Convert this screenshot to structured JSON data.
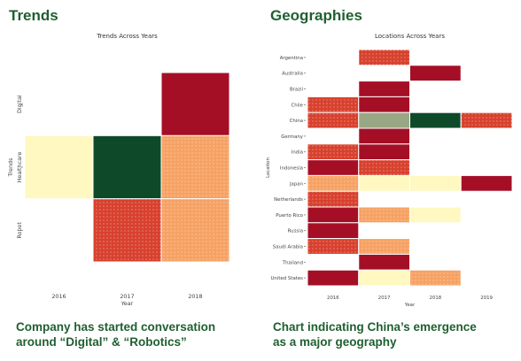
{
  "panels": {
    "trends": {
      "heading": "Trends",
      "caption_line1": "Company has started conversation",
      "caption_line2": "around “Digital” & “Robotics”"
    },
    "geographies": {
      "heading": "Geographies",
      "caption_line1": "Chart indicating China’s emergence",
      "caption_line2": "as a major geography"
    }
  },
  "colors": {
    "lowest": "#fff8c0",
    "low": "#f6a264",
    "medium": "#d8412e",
    "high": "#a50f26",
    "neutral": "#98a885",
    "highest": "#0e4a2a"
  },
  "chart_data": [
    {
      "type": "heatmap",
      "title": "Trends Across Years",
      "xlabel": "Year",
      "ylabel": "Trends",
      "x_categories": [
        "2016",
        "2017",
        "2018"
      ],
      "y_categories": [
        "Digital",
        "Healthcare",
        "Robot"
      ],
      "cells": [
        {
          "row": "Digital",
          "col": "2018",
          "level": "high"
        },
        {
          "row": "Healthcare",
          "col": "2016",
          "level": "lowest"
        },
        {
          "row": "Healthcare",
          "col": "2017",
          "level": "highest"
        },
        {
          "row": "Healthcare",
          "col": "2018",
          "level": "low"
        },
        {
          "row": "Robot",
          "col": "2017",
          "level": "medium"
        },
        {
          "row": "Robot",
          "col": "2018",
          "level": "low"
        }
      ],
      "grid": false,
      "legend": "none"
    },
    {
      "type": "heatmap",
      "title": "Locations Across Years",
      "xlabel": "Year",
      "ylabel": "Location",
      "x_categories": [
        "2016",
        "2017",
        "2018",
        "2019"
      ],
      "y_categories": [
        "Argentina",
        "Australia",
        "Brazil",
        "Chile",
        "China",
        "Germany",
        "India",
        "Indonesia",
        "Japan",
        "Netherlands",
        "Puerto Rico",
        "Russia",
        "Saudi Arabia",
        "Thailand",
        "United States"
      ],
      "cells": [
        {
          "row": "Argentina",
          "col": "2017",
          "level": "medium"
        },
        {
          "row": "Australia",
          "col": "2018",
          "level": "high"
        },
        {
          "row": "Brazil",
          "col": "2017",
          "level": "high"
        },
        {
          "row": "Chile",
          "col": "2016",
          "level": "medium"
        },
        {
          "row": "Chile",
          "col": "2017",
          "level": "high"
        },
        {
          "row": "China",
          "col": "2016",
          "level": "medium"
        },
        {
          "row": "China",
          "col": "2017",
          "level": "neutral"
        },
        {
          "row": "China",
          "col": "2018",
          "level": "highest"
        },
        {
          "row": "China",
          "col": "2019",
          "level": "medium"
        },
        {
          "row": "Germany",
          "col": "2017",
          "level": "high"
        },
        {
          "row": "India",
          "col": "2016",
          "level": "medium"
        },
        {
          "row": "India",
          "col": "2017",
          "level": "high"
        },
        {
          "row": "Indonesia",
          "col": "2016",
          "level": "high"
        },
        {
          "row": "Indonesia",
          "col": "2017",
          "level": "medium"
        },
        {
          "row": "Japan",
          "col": "2016",
          "level": "low"
        },
        {
          "row": "Japan",
          "col": "2017",
          "level": "lowest"
        },
        {
          "row": "Japan",
          "col": "2018",
          "level": "lowest"
        },
        {
          "row": "Japan",
          "col": "2019",
          "level": "high"
        },
        {
          "row": "Netherlands",
          "col": "2016",
          "level": "medium"
        },
        {
          "row": "Puerto Rico",
          "col": "2016",
          "level": "high"
        },
        {
          "row": "Puerto Rico",
          "col": "2017",
          "level": "low"
        },
        {
          "row": "Puerto Rico",
          "col": "2018",
          "level": "lowest"
        },
        {
          "row": "Russia",
          "col": "2016",
          "level": "high"
        },
        {
          "row": "Saudi Arabia",
          "col": "2016",
          "level": "medium"
        },
        {
          "row": "Saudi Arabia",
          "col": "2017",
          "level": "low"
        },
        {
          "row": "Thailand",
          "col": "2017",
          "level": "high"
        },
        {
          "row": "United States",
          "col": "2016",
          "level": "high"
        },
        {
          "row": "United States",
          "col": "2017",
          "level": "lowest"
        },
        {
          "row": "United States",
          "col": "2018",
          "level": "low"
        }
      ],
      "grid": false,
      "legend": "none"
    }
  ]
}
